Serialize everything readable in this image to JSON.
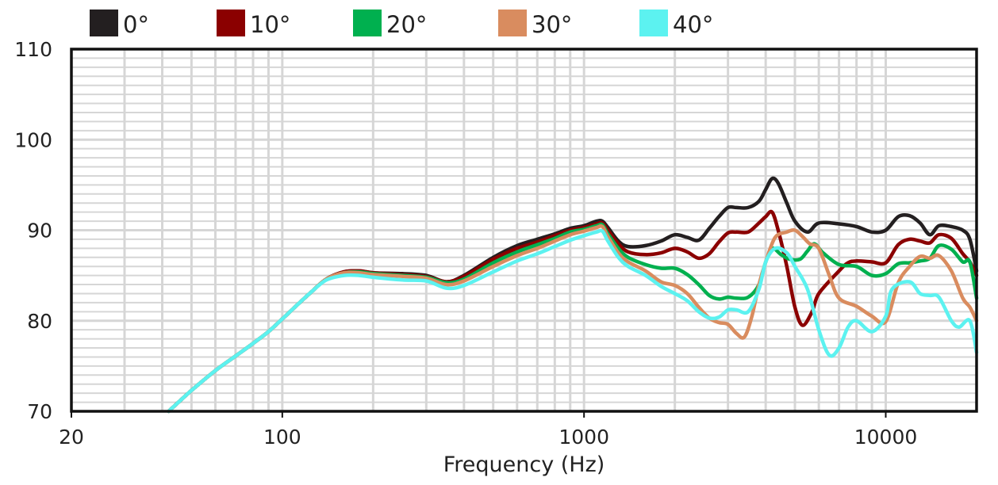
{
  "chart_data": {
    "type": "line",
    "title": "",
    "xlabel": "Frequency (Hz)",
    "ylabel": "",
    "xscale": "log",
    "xlim": [
      20,
      20000
    ],
    "ylim": [
      70,
      110
    ],
    "x_ticks": [
      {
        "value": 20,
        "label": "20"
      },
      {
        "value": 100,
        "label": "100"
      },
      {
        "value": 1000,
        "label": "1000"
      },
      {
        "value": 10000,
        "label": "10000"
      }
    ],
    "y_ticks": [
      {
        "value": 70,
        "label": "70"
      },
      {
        "value": 80,
        "label": "80"
      },
      {
        "value": 90,
        "label": "90"
      },
      {
        "value": 100,
        "label": "100"
      },
      {
        "value": 110,
        "label": "110"
      }
    ],
    "grid": true,
    "legend_position": "top",
    "series": [
      {
        "name": "0°",
        "color": "#231f20",
        "points": [
          [
            42,
            70
          ],
          [
            50,
            72.3
          ],
          [
            60,
            74.5
          ],
          [
            70,
            76.1
          ],
          [
            80,
            77.5
          ],
          [
            90,
            78.8
          ],
          [
            100,
            80.2
          ],
          [
            110,
            81.5
          ],
          [
            125,
            83.2
          ],
          [
            140,
            84.6
          ],
          [
            160,
            85.4
          ],
          [
            180,
            85.5
          ],
          [
            200,
            85.3
          ],
          [
            250,
            85.2
          ],
          [
            300,
            85.0
          ],
          [
            350,
            84.3
          ],
          [
            400,
            85.0
          ],
          [
            500,
            87.0
          ],
          [
            600,
            88.3
          ],
          [
            700,
            89.0
          ],
          [
            800,
            89.6
          ],
          [
            900,
            90.2
          ],
          [
            1000,
            90.5
          ],
          [
            1100,
            91.0
          ],
          [
            1150,
            91.0
          ],
          [
            1200,
            90.3
          ],
          [
            1300,
            88.8
          ],
          [
            1400,
            88.2
          ],
          [
            1600,
            88.3
          ],
          [
            1800,
            88.8
          ],
          [
            2000,
            89.5
          ],
          [
            2200,
            89.2
          ],
          [
            2400,
            88.9
          ],
          [
            2600,
            90.2
          ],
          [
            2800,
            91.5
          ],
          [
            3000,
            92.5
          ],
          [
            3200,
            92.5
          ],
          [
            3500,
            92.5
          ],
          [
            3800,
            93.2
          ],
          [
            4000,
            94.5
          ],
          [
            4200,
            95.7
          ],
          [
            4400,
            95.2
          ],
          [
            4700,
            93.0
          ],
          [
            5000,
            91.0
          ],
          [
            5500,
            89.8
          ],
          [
            6000,
            90.8
          ],
          [
            7000,
            90.7
          ],
          [
            8000,
            90.4
          ],
          [
            9000,
            89.8
          ],
          [
            10000,
            90.0
          ],
          [
            11000,
            91.5
          ],
          [
            12000,
            91.6
          ],
          [
            13000,
            90.8
          ],
          [
            14000,
            89.5
          ],
          [
            15000,
            90.5
          ],
          [
            16500,
            90.4
          ],
          [
            18000,
            90.0
          ],
          [
            19000,
            89.0
          ],
          [
            20000,
            85.5
          ]
        ]
      },
      {
        "name": "10°",
        "color": "#8b0000",
        "points": [
          [
            42,
            70
          ],
          [
            50,
            72.3
          ],
          [
            60,
            74.5
          ],
          [
            70,
            76.1
          ],
          [
            80,
            77.5
          ],
          [
            90,
            78.8
          ],
          [
            100,
            80.2
          ],
          [
            110,
            81.5
          ],
          [
            125,
            83.2
          ],
          [
            140,
            84.6
          ],
          [
            160,
            85.4
          ],
          [
            180,
            85.5
          ],
          [
            200,
            85.3
          ],
          [
            250,
            85.1
          ],
          [
            300,
            84.9
          ],
          [
            350,
            84.3
          ],
          [
            400,
            84.9
          ],
          [
            500,
            86.8
          ],
          [
            600,
            88.0
          ],
          [
            700,
            88.7
          ],
          [
            800,
            89.4
          ],
          [
            900,
            90.0
          ],
          [
            1000,
            90.3
          ],
          [
            1100,
            90.7
          ],
          [
            1150,
            90.8
          ],
          [
            1200,
            90.0
          ],
          [
            1300,
            88.5
          ],
          [
            1400,
            87.6
          ],
          [
            1600,
            87.3
          ],
          [
            1800,
            87.5
          ],
          [
            2000,
            88.0
          ],
          [
            2200,
            87.6
          ],
          [
            2400,
            86.9
          ],
          [
            2600,
            87.4
          ],
          [
            2800,
            88.7
          ],
          [
            3000,
            89.7
          ],
          [
            3200,
            89.8
          ],
          [
            3500,
            89.8
          ],
          [
            3800,
            90.8
          ],
          [
            4000,
            91.5
          ],
          [
            4200,
            92.0
          ],
          [
            4400,
            90.0
          ],
          [
            4700,
            86.0
          ],
          [
            5000,
            81.5
          ],
          [
            5300,
            79.5
          ],
          [
            5700,
            81.0
          ],
          [
            6000,
            83.0
          ],
          [
            7000,
            85.5
          ],
          [
            7500,
            86.4
          ],
          [
            8000,
            86.6
          ],
          [
            9000,
            86.5
          ],
          [
            10000,
            86.4
          ],
          [
            11000,
            88.4
          ],
          [
            12000,
            89.0
          ],
          [
            13000,
            88.8
          ],
          [
            14000,
            88.6
          ],
          [
            15000,
            89.5
          ],
          [
            16500,
            89.1
          ],
          [
            18000,
            87.4
          ],
          [
            19000,
            86.5
          ],
          [
            20000,
            85.0
          ]
        ]
      },
      {
        "name": "20°",
        "color": "#00b04f",
        "points": [
          [
            42,
            70
          ],
          [
            50,
            72.3
          ],
          [
            60,
            74.5
          ],
          [
            70,
            76.1
          ],
          [
            80,
            77.5
          ],
          [
            90,
            78.8
          ],
          [
            100,
            80.2
          ],
          [
            110,
            81.5
          ],
          [
            125,
            83.2
          ],
          [
            140,
            84.6
          ],
          [
            160,
            85.3
          ],
          [
            180,
            85.4
          ],
          [
            200,
            85.2
          ],
          [
            250,
            85.0
          ],
          [
            300,
            84.8
          ],
          [
            350,
            84.2
          ],
          [
            400,
            84.6
          ],
          [
            500,
            86.4
          ],
          [
            600,
            87.6
          ],
          [
            700,
            88.4
          ],
          [
            800,
            89.1
          ],
          [
            900,
            89.8
          ],
          [
            1000,
            90.1
          ],
          [
            1100,
            90.5
          ],
          [
            1150,
            90.6
          ],
          [
            1200,
            89.6
          ],
          [
            1300,
            88.0
          ],
          [
            1400,
            87.0
          ],
          [
            1600,
            86.2
          ],
          [
            1800,
            85.8
          ],
          [
            2000,
            85.8
          ],
          [
            2200,
            85.1
          ],
          [
            2400,
            84.0
          ],
          [
            2600,
            82.8
          ],
          [
            2800,
            82.4
          ],
          [
            3000,
            82.6
          ],
          [
            3200,
            82.5
          ],
          [
            3500,
            82.6
          ],
          [
            3800,
            84.0
          ],
          [
            4000,
            86.5
          ],
          [
            4200,
            88.0
          ],
          [
            4500,
            87.3
          ],
          [
            4800,
            86.8
          ],
          [
            5200,
            86.8
          ],
          [
            5500,
            87.7
          ],
          [
            5800,
            88.5
          ],
          [
            6200,
            87.5
          ],
          [
            7000,
            86.2
          ],
          [
            8000,
            86.0
          ],
          [
            9000,
            85.0
          ],
          [
            10000,
            85.2
          ],
          [
            11000,
            86.3
          ],
          [
            12000,
            86.4
          ],
          [
            13000,
            86.6
          ],
          [
            14000,
            86.9
          ],
          [
            15000,
            88.3
          ],
          [
            16500,
            87.9
          ],
          [
            18000,
            86.5
          ],
          [
            19000,
            86.5
          ],
          [
            20000,
            82.5
          ]
        ]
      },
      {
        "name": "30°",
        "color": "#d98c5f",
        "points": [
          [
            42,
            70
          ],
          [
            50,
            72.3
          ],
          [
            60,
            74.5
          ],
          [
            70,
            76.1
          ],
          [
            80,
            77.5
          ],
          [
            90,
            78.8
          ],
          [
            100,
            80.2
          ],
          [
            110,
            81.5
          ],
          [
            125,
            83.2
          ],
          [
            140,
            84.6
          ],
          [
            160,
            85.3
          ],
          [
            180,
            85.3
          ],
          [
            200,
            85.1
          ],
          [
            250,
            84.9
          ],
          [
            300,
            84.7
          ],
          [
            350,
            84.0
          ],
          [
            400,
            84.4
          ],
          [
            500,
            86.0
          ],
          [
            600,
            87.2
          ],
          [
            700,
            88.0
          ],
          [
            800,
            88.8
          ],
          [
            900,
            89.5
          ],
          [
            1000,
            89.9
          ],
          [
            1100,
            90.3
          ],
          [
            1150,
            90.4
          ],
          [
            1200,
            89.3
          ],
          [
            1300,
            87.5
          ],
          [
            1400,
            86.5
          ],
          [
            1600,
            85.5
          ],
          [
            1800,
            84.3
          ],
          [
            2000,
            83.9
          ],
          [
            2200,
            83.0
          ],
          [
            2400,
            81.5
          ],
          [
            2600,
            80.3
          ],
          [
            2800,
            79.8
          ],
          [
            3000,
            79.6
          ],
          [
            3200,
            78.6
          ],
          [
            3400,
            78.2
          ],
          [
            3600,
            80.5
          ],
          [
            3800,
            84.0
          ],
          [
            4000,
            86.5
          ],
          [
            4300,
            89.2
          ],
          [
            4700,
            89.8
          ],
          [
            5000,
            90.0
          ],
          [
            5300,
            89.3
          ],
          [
            5600,
            88.5
          ],
          [
            6000,
            88.0
          ],
          [
            6500,
            85.0
          ],
          [
            7000,
            82.5
          ],
          [
            8000,
            81.6
          ],
          [
            9000,
            80.5
          ],
          [
            10000,
            79.9
          ],
          [
            11000,
            84.2
          ],
          [
            12000,
            86.0
          ],
          [
            13000,
            87.1
          ],
          [
            14000,
            86.9
          ],
          [
            15000,
            87.2
          ],
          [
            16500,
            85.5
          ],
          [
            18000,
            82.5
          ],
          [
            19000,
            81.5
          ],
          [
            20000,
            80.0
          ]
        ]
      },
      {
        "name": "40°",
        "color": "#5cf2f0",
        "points": [
          [
            42,
            70
          ],
          [
            50,
            72.3
          ],
          [
            60,
            74.5
          ],
          [
            70,
            76.1
          ],
          [
            80,
            77.5
          ],
          [
            90,
            78.8
          ],
          [
            100,
            80.2
          ],
          [
            110,
            81.5
          ],
          [
            125,
            83.2
          ],
          [
            140,
            84.5
          ],
          [
            160,
            85.0
          ],
          [
            180,
            85.0
          ],
          [
            200,
            84.8
          ],
          [
            250,
            84.5
          ],
          [
            300,
            84.4
          ],
          [
            350,
            83.6
          ],
          [
            400,
            83.9
          ],
          [
            500,
            85.4
          ],
          [
            600,
            86.6
          ],
          [
            700,
            87.4
          ],
          [
            800,
            88.2
          ],
          [
            900,
            88.9
          ],
          [
            1000,
            89.4
          ],
          [
            1100,
            89.8
          ],
          [
            1150,
            89.9
          ],
          [
            1200,
            88.8
          ],
          [
            1300,
            87.0
          ],
          [
            1400,
            86.0
          ],
          [
            1600,
            85.0
          ],
          [
            1800,
            83.8
          ],
          [
            2000,
            83.0
          ],
          [
            2200,
            82.2
          ],
          [
            2400,
            81.0
          ],
          [
            2600,
            80.3
          ],
          [
            2800,
            80.4
          ],
          [
            3000,
            81.2
          ],
          [
            3200,
            81.2
          ],
          [
            3500,
            81.0
          ],
          [
            3800,
            83.5
          ],
          [
            4000,
            86.5
          ],
          [
            4300,
            88.0
          ],
          [
            4700,
            87.5
          ],
          [
            5000,
            86.0
          ],
          [
            5500,
            83.5
          ],
          [
            6000,
            79.0
          ],
          [
            6500,
            76.2
          ],
          [
            7000,
            77.0
          ],
          [
            7500,
            79.3
          ],
          [
            8000,
            80.0
          ],
          [
            9000,
            78.8
          ],
          [
            10000,
            80.5
          ],
          [
            10500,
            83.5
          ],
          [
            12000,
            84.3
          ],
          [
            13000,
            83.0
          ],
          [
            14000,
            82.8
          ],
          [
            15000,
            82.6
          ],
          [
            16500,
            80.0
          ],
          [
            17500,
            79.3
          ],
          [
            19000,
            80.0
          ],
          [
            20000,
            76.5
          ]
        ]
      }
    ]
  }
}
